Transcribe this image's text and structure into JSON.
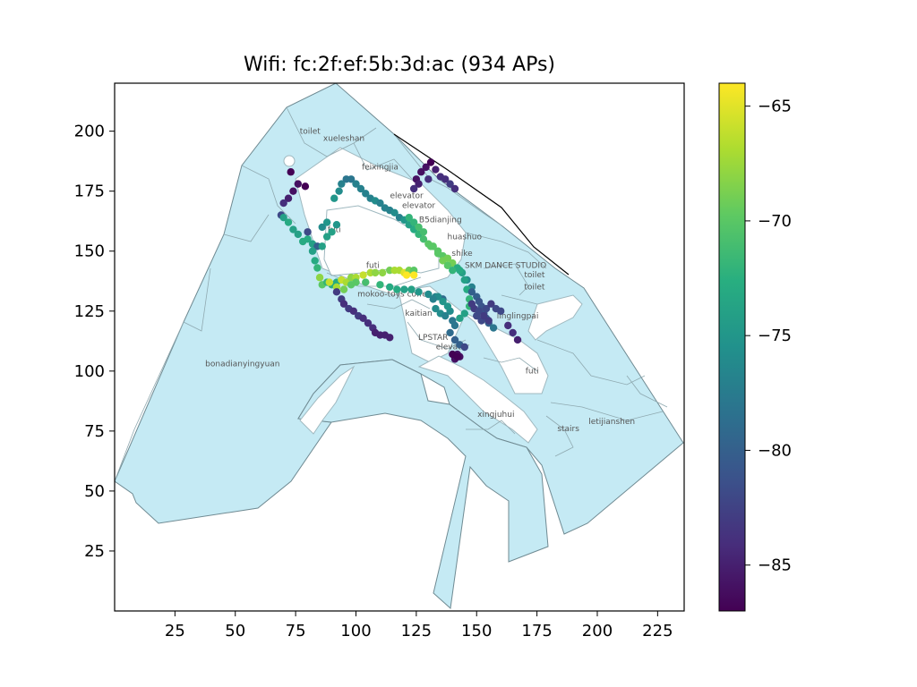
{
  "chart_data": {
    "type": "scatter",
    "title": "Wifi: fc:2f:ef:5b:3d:ac (934 APs)",
    "xlabel": "",
    "ylabel": "",
    "xlim": [
      0,
      236
    ],
    "ylim": [
      0,
      220
    ],
    "xticks": [
      25,
      50,
      75,
      100,
      125,
      150,
      175,
      200,
      225
    ],
    "yticks": [
      25,
      50,
      75,
      100,
      125,
      150,
      175,
      200
    ],
    "colorbar": {
      "min": -87,
      "max": -64,
      "ticks": [
        -65,
        -70,
        -75,
        -80,
        -85
      ],
      "tick_labels": [
        "−65",
        "−70",
        "−75",
        "−80",
        "−85"
      ],
      "colormap": "viridis"
    },
    "colors": {
      "floor_fill": "#c5eaf4",
      "floor_stroke": "#6f8a92"
    },
    "room_labels": [
      {
        "text": "toilet",
        "x": 81,
        "y": 199
      },
      {
        "text": "xueleshan",
        "x": 95,
        "y": 196
      },
      {
        "text": "feixingjia",
        "x": 110,
        "y": 184
      },
      {
        "text": "elevator",
        "x": 121,
        "y": 172
      },
      {
        "text": "elevator",
        "x": 126,
        "y": 168
      },
      {
        "text": "B5dianjing",
        "x": 135,
        "y": 162
      },
      {
        "text": "futi",
        "x": 91,
        "y": 158
      },
      {
        "text": "huashuo",
        "x": 145,
        "y": 155
      },
      {
        "text": "shike",
        "x": 144,
        "y": 148
      },
      {
        "text": "futi",
        "x": 107,
        "y": 143
      },
      {
        "text": "SKM DANCE STUDIO",
        "x": 162,
        "y": 143
      },
      {
        "text": "toilet",
        "x": 174,
        "y": 139
      },
      {
        "text": "toilet",
        "x": 174,
        "y": 134
      },
      {
        "text": "mokoo-toys coffe",
        "x": 115,
        "y": 131
      },
      {
        "text": "kaitian",
        "x": 126,
        "y": 123
      },
      {
        "text": "linglingpai",
        "x": 167,
        "y": 122
      },
      {
        "text": "LPSTAR",
        "x": 132,
        "y": 113
      },
      {
        "text": "elevator",
        "x": 140,
        "y": 109
      },
      {
        "text": "bonadianyingyuan",
        "x": 53,
        "y": 102
      },
      {
        "text": "futi",
        "x": 173,
        "y": 99
      },
      {
        "text": "xingjuhui",
        "x": 158,
        "y": 81
      },
      {
        "text": "letijianshen",
        "x": 206,
        "y": 78
      },
      {
        "text": "stairs",
        "x": 188,
        "y": 75
      }
    ],
    "points": [
      [
        73,
        183,
        -87
      ],
      [
        72,
        172,
        -85
      ],
      [
        74,
        175,
        -86
      ],
      [
        76,
        178,
        -86
      ],
      [
        79,
        177,
        -87
      ],
      [
        70,
        170,
        -84
      ],
      [
        69,
        165,
        -82
      ],
      [
        70,
        164,
        -74
      ],
      [
        72,
        162,
        -73
      ],
      [
        74,
        159,
        -74
      ],
      [
        76,
        157,
        -74
      ],
      [
        78,
        154,
        -73
      ],
      [
        80,
        155,
        -73
      ],
      [
        82,
        153,
        -74
      ],
      [
        84,
        152,
        -80
      ],
      [
        86,
        152,
        -74
      ],
      [
        88,
        156,
        -74
      ],
      [
        90,
        158,
        -74
      ],
      [
        88,
        162,
        -75
      ],
      [
        92,
        161,
        -75
      ],
      [
        86,
        160,
        -76
      ],
      [
        80,
        158,
        -82
      ],
      [
        82,
        150,
        -74
      ],
      [
        83,
        146,
        -73
      ],
      [
        84,
        143,
        -72
      ],
      [
        85,
        139,
        -68
      ],
      [
        86,
        136,
        -70
      ],
      [
        88,
        137,
        -72
      ],
      [
        90,
        136,
        -73
      ],
      [
        92,
        137,
        -73
      ],
      [
        94,
        138,
        -66
      ],
      [
        96,
        137,
        -67
      ],
      [
        98,
        139,
        -68
      ],
      [
        100,
        139,
        -67
      ],
      [
        103,
        140,
        -66
      ],
      [
        106,
        141,
        -67
      ],
      [
        108,
        141,
        -68
      ],
      [
        111,
        141,
        -68
      ],
      [
        114,
        142,
        -69
      ],
      [
        116,
        142,
        -67
      ],
      [
        118,
        142,
        -67
      ],
      [
        120,
        141,
        -65
      ],
      [
        122,
        142,
        -69
      ],
      [
        124,
        142,
        -70
      ],
      [
        121,
        140,
        -64
      ],
      [
        124,
        140,
        -64
      ],
      [
        89,
        137,
        -66
      ],
      [
        92,
        135,
        -67
      ],
      [
        95,
        134,
        -69
      ],
      [
        98,
        136,
        -70
      ],
      [
        100,
        137,
        -70
      ],
      [
        104,
        137,
        -71
      ],
      [
        110,
        136,
        -72
      ],
      [
        114,
        135,
        -73
      ],
      [
        117,
        134,
        -73
      ],
      [
        120,
        134,
        -74
      ],
      [
        123,
        134,
        -74
      ],
      [
        126,
        133,
        -75
      ],
      [
        130,
        132,
        -76
      ],
      [
        133,
        131,
        -77
      ],
      [
        136,
        130,
        -79
      ],
      [
        92,
        133,
        -83
      ],
      [
        94,
        130,
        -83
      ],
      [
        95,
        128,
        -84
      ],
      [
        97,
        126,
        -83
      ],
      [
        99,
        125,
        -84
      ],
      [
        101,
        123,
        -83
      ],
      [
        103,
        122,
        -84
      ],
      [
        105,
        120,
        -84
      ],
      [
        107,
        118,
        -84
      ],
      [
        108,
        116,
        -85
      ],
      [
        110,
        115,
        -85
      ],
      [
        112,
        115,
        -85
      ],
      [
        114,
        114,
        -85
      ],
      [
        91,
        172,
        -75
      ],
      [
        93,
        175,
        -76
      ],
      [
        94,
        178,
        -77
      ],
      [
        96,
        180,
        -78
      ],
      [
        98,
        180,
        -78
      ],
      [
        100,
        178,
        -77
      ],
      [
        102,
        176,
        -77
      ],
      [
        104,
        174,
        -77
      ],
      [
        106,
        172,
        -77
      ],
      [
        108,
        171,
        -76
      ],
      [
        110,
        170,
        -77
      ],
      [
        112,
        168,
        -77
      ],
      [
        114,
        167,
        -77
      ],
      [
        116,
        166,
        -76
      ],
      [
        118,
        164,
        -77
      ],
      [
        120,
        163,
        -75
      ],
      [
        122,
        161,
        -74
      ],
      [
        124,
        159,
        -73
      ],
      [
        126,
        157,
        -72
      ],
      [
        128,
        155,
        -71
      ],
      [
        130,
        153,
        -70
      ],
      [
        132,
        152,
        -70
      ],
      [
        134,
        150,
        -70
      ],
      [
        136,
        148,
        -70
      ],
      [
        138,
        147,
        -69
      ],
      [
        140,
        145,
        -69
      ],
      [
        142,
        143,
        -73
      ],
      [
        144,
        141,
        -74
      ],
      [
        146,
        138,
        -76
      ],
      [
        148,
        135,
        -77
      ],
      [
        122,
        164,
        -72
      ],
      [
        124,
        162,
        -72
      ],
      [
        126,
        160,
        -71
      ],
      [
        128,
        158,
        -71
      ],
      [
        131,
        152,
        -70
      ],
      [
        134,
        149,
        -70
      ],
      [
        136,
        146,
        -69
      ],
      [
        138,
        144,
        -70
      ],
      [
        140,
        142,
        -72
      ],
      [
        143,
        142,
        -73
      ],
      [
        145,
        138,
        -74
      ],
      [
        146,
        134,
        -73
      ],
      [
        147,
        130,
        -72
      ],
      [
        147,
        127,
        -72
      ],
      [
        145,
        124,
        -74
      ],
      [
        143,
        122,
        -74
      ],
      [
        141,
        119,
        -78
      ],
      [
        139,
        116,
        -79
      ],
      [
        141,
        113,
        -80
      ],
      [
        143,
        111,
        -80
      ],
      [
        145,
        110,
        -82
      ],
      [
        142,
        107,
        -86
      ],
      [
        141,
        105,
        -86
      ],
      [
        143,
        106,
        -86
      ],
      [
        140,
        107,
        -87
      ],
      [
        142,
        106,
        -87
      ],
      [
        139,
        125,
        -76
      ],
      [
        138,
        127,
        -75
      ],
      [
        136,
        129,
        -75
      ],
      [
        134,
        131,
        -76
      ],
      [
        132,
        130,
        -77
      ],
      [
        135,
        124,
        -76
      ],
      [
        133,
        126,
        -76
      ],
      [
        137,
        123,
        -77
      ],
      [
        140,
        121,
        -78
      ],
      [
        148,
        133,
        -80
      ],
      [
        150,
        131,
        -80
      ],
      [
        151,
        129,
        -81
      ],
      [
        152,
        127,
        -81
      ],
      [
        153,
        124,
        -81
      ],
      [
        154,
        122,
        -80
      ],
      [
        155,
        120,
        -80
      ],
      [
        157,
        118,
        -78
      ],
      [
        154,
        126,
        -82
      ],
      [
        156,
        128,
        -83
      ],
      [
        158,
        126,
        -82
      ],
      [
        160,
        125,
        -82
      ],
      [
        163,
        119,
        -84
      ],
      [
        165,
        116,
        -84
      ],
      [
        167,
        113,
        -85
      ],
      [
        150,
        123,
        -82
      ],
      [
        152,
        121,
        -82
      ],
      [
        148,
        128,
        -83
      ],
      [
        149,
        126,
        -83
      ],
      [
        151,
        125,
        -82
      ],
      [
        153,
        123,
        -83
      ],
      [
        155,
        121,
        -83
      ],
      [
        127,
        183,
        -86
      ],
      [
        129,
        185,
        -86
      ],
      [
        131,
        187,
        -87
      ],
      [
        133,
        184,
        -85
      ],
      [
        135,
        181,
        -84
      ],
      [
        137,
        180,
        -84
      ],
      [
        139,
        178,
        -83
      ],
      [
        141,
        176,
        -84
      ],
      [
        125,
        180,
        -86
      ],
      [
        126,
        178,
        -85
      ],
      [
        124,
        176,
        -84
      ],
      [
        130,
        180,
        -84
      ]
    ]
  }
}
